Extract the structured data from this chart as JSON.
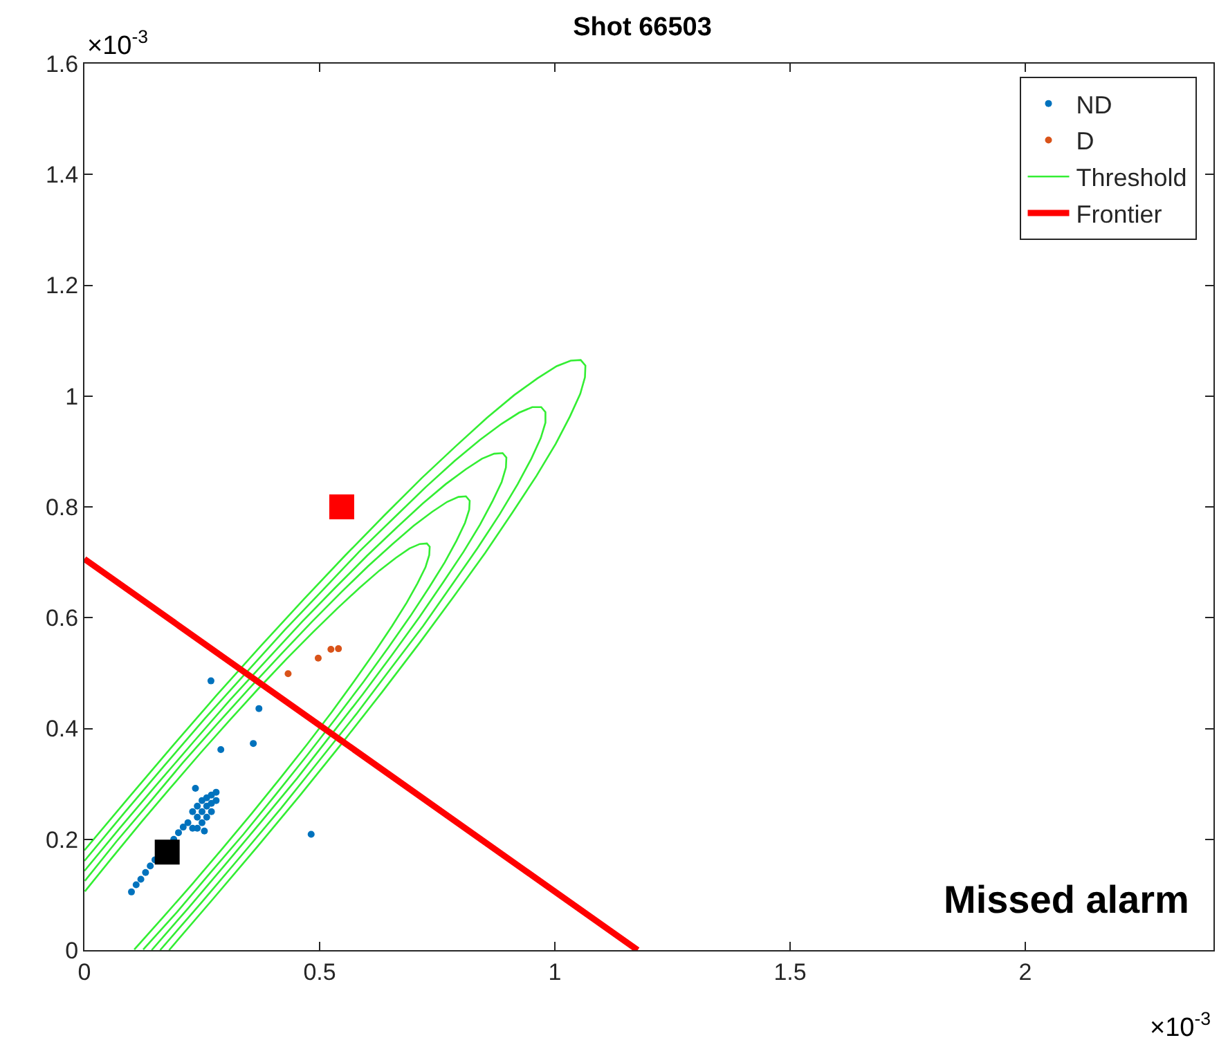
{
  "chart_data": {
    "type": "scatter",
    "title": "Shot 66503",
    "xlim": [
      0,
      2.4
    ],
    "ylim": [
      0,
      1.6
    ],
    "xticks": [
      0,
      0.5,
      1,
      1.5,
      2
    ],
    "yticks": [
      0,
      0.2,
      0.4,
      0.6,
      0.8,
      1,
      1.2,
      1.4,
      1.6
    ],
    "legend": "top right",
    "annotations": [
      "×10$^{-3}$",
      "×10$^{-3}$",
      "Missed alarm"
    ],
    "series": [
      {
        "name": "ND",
        "marker": "circle",
        "color": "#0072bd",
        "x": [
          0.1,
          0.11,
          0.12,
          0.13,
          0.14,
          0.15,
          0.19,
          0.2,
          0.21,
          0.22,
          0.23,
          0.24,
          0.25,
          0.26,
          0.27,
          0.28,
          0.27,
          0.26,
          0.25,
          0.24,
          0.23,
          0.26,
          0.25,
          0.24,
          0.27,
          0.28,
          0.255,
          0.236,
          0.269,
          0.371,
          0.359,
          0.29,
          0.482
        ],
        "values": [
          0.105,
          0.118,
          0.128,
          0.14,
          0.152,
          0.163,
          0.2,
          0.212,
          0.222,
          0.23,
          0.25,
          0.26,
          0.27,
          0.275,
          0.28,
          0.27,
          0.25,
          0.24,
          0.23,
          0.22,
          0.22,
          0.26,
          0.25,
          0.24,
          0.265,
          0.285,
          0.215,
          0.292,
          0.486,
          0.436,
          0.373,
          0.362,
          0.209
        ]
      },
      {
        "name": "D",
        "marker": "circle",
        "color": "#d95319",
        "x": [
          0.433,
          0.497,
          0.524,
          0.54
        ],
        "values": [
          0.499,
          0.527,
          0.543,
          0.544
        ]
      },
      {
        "name": "Threshold",
        "type": "line",
        "marker": "none",
        "line_style": "solid",
        "color": "#33ee33",
        "x": [
          0.18,
          0.274,
          0.368,
          0.459,
          0.548,
          0.633,
          0.712,
          0.785,
          0.852,
          0.91,
          0.961,
          1.002,
          1.032,
          1.054,
          1.064,
          1.065,
          1.055,
          1.034,
          1.004,
          0.963,
          0.914,
          0.856,
          0.79,
          0.717,
          0.638,
          0.554,
          0.466,
          0.374,
          0.28,
          0.187,
          0.093,
          0.0,
          null,
          0.161,
          0.247,
          0.333,
          0.418,
          0.499,
          0.578,
          0.651,
          0.72,
          0.781,
          0.836,
          0.883,
          0.921,
          0.95,
          0.97,
          0.98,
          0.98,
          0.971,
          0.952,
          0.924,
          0.887,
          0.841,
          0.787,
          0.726,
          0.659,
          0.585,
          0.508,
          0.426,
          0.342,
          0.256,
          0.17,
          0.084,
          0.0,
          null,
          0.143,
          0.221,
          0.299,
          0.376,
          0.452,
          0.523,
          0.592,
          0.654,
          0.712,
          0.762,
          0.806,
          0.841,
          0.868,
          0.887,
          0.896,
          0.897,
          0.889,
          0.871,
          0.845,
          0.811,
          0.768,
          0.719,
          0.663,
          0.601,
          0.533,
          0.462,
          0.387,
          0.31,
          0.232,
          0.154,
          0.076,
          0.0,
          null,
          0.125,
          0.196,
          0.267,
          0.338,
          0.406,
          0.472,
          0.535,
          0.593,
          0.646,
          0.693,
          0.733,
          0.766,
          0.791,
          0.809,
          0.818,
          0.819,
          0.811,
          0.795,
          0.771,
          0.739,
          0.7,
          0.655,
          0.603,
          0.546,
          0.484,
          0.419,
          0.35,
          0.28,
          0.209,
          0.139,
          0.068,
          0.001,
          null,
          0.106,
          0.168,
          0.231,
          0.294,
          0.356,
          0.416,
          0.473,
          0.526,
          0.574,
          0.617,
          0.654,
          0.685,
          0.708,
          0.725,
          0.733,
          0.734,
          0.728,
          0.713,
          0.691,
          0.662,
          0.627,
          0.585,
          0.538,
          0.486,
          0.43,
          0.371,
          0.31,
          0.247,
          0.184,
          0.121,
          0.06,
          0.001
        ],
        "values": [
          0.0,
          0.093,
          0.187,
          0.28,
          0.374,
          0.466,
          0.554,
          0.638,
          0.717,
          0.79,
          0.856,
          0.914,
          0.963,
          1.004,
          1.034,
          1.055,
          1.065,
          1.064,
          1.054,
          1.032,
          1.002,
          0.961,
          0.91,
          0.852,
          0.785,
          0.712,
          0.633,
          0.548,
          0.459,
          0.368,
          0.274,
          0.18,
          null,
          0.0,
          0.084,
          0.17,
          0.256,
          0.342,
          0.426,
          0.508,
          0.585,
          0.659,
          0.726,
          0.787,
          0.841,
          0.887,
          0.924,
          0.952,
          0.971,
          0.98,
          0.98,
          0.97,
          0.95,
          0.921,
          0.883,
          0.836,
          0.781,
          0.72,
          0.651,
          0.578,
          0.499,
          0.418,
          0.333,
          0.247,
          0.161,
          null,
          0.0,
          0.076,
          0.154,
          0.232,
          0.31,
          0.387,
          0.462,
          0.533,
          0.601,
          0.663,
          0.719,
          0.768,
          0.811,
          0.845,
          0.871,
          0.889,
          0.897,
          0.896,
          0.887,
          0.868,
          0.841,
          0.806,
          0.762,
          0.712,
          0.654,
          0.592,
          0.523,
          0.452,
          0.376,
          0.299,
          0.221,
          0.143,
          null,
          0.001,
          0.068,
          0.139,
          0.209,
          0.28,
          0.35,
          0.419,
          0.484,
          0.546,
          0.603,
          0.655,
          0.7,
          0.739,
          0.771,
          0.795,
          0.811,
          0.819,
          0.818,
          0.809,
          0.791,
          0.766,
          0.733,
          0.693,
          0.646,
          0.593,
          0.535,
          0.472,
          0.406,
          0.338,
          0.267,
          0.196,
          0.125,
          null,
          0.001,
          0.06,
          0.121,
          0.184,
          0.247,
          0.31,
          0.371,
          0.43,
          0.486,
          0.538,
          0.585,
          0.627,
          0.662,
          0.691,
          0.713,
          0.728,
          0.734,
          0.733,
          0.725,
          0.708,
          0.685,
          0.654,
          0.617,
          0.574,
          0.526,
          0.473,
          0.416,
          0.356,
          0.294,
          0.231,
          0.168,
          0.106
        ]
      },
      {
        "name": "Frontier",
        "type": "line",
        "marker": "none",
        "line_style": "solid",
        "color": "#ff0000",
        "x": [
          0,
          1.176
        ],
        "values": [
          0.706,
          0
        ]
      },
      {
        "marker": "square",
        "color": "#ff0000",
        "x": [
          0.547
        ],
        "values": [
          0.8
        ]
      },
      {
        "marker": "square",
        "color": "#000000",
        "x": [
          0.176
        ],
        "values": [
          0.177
        ]
      }
    ]
  }
}
